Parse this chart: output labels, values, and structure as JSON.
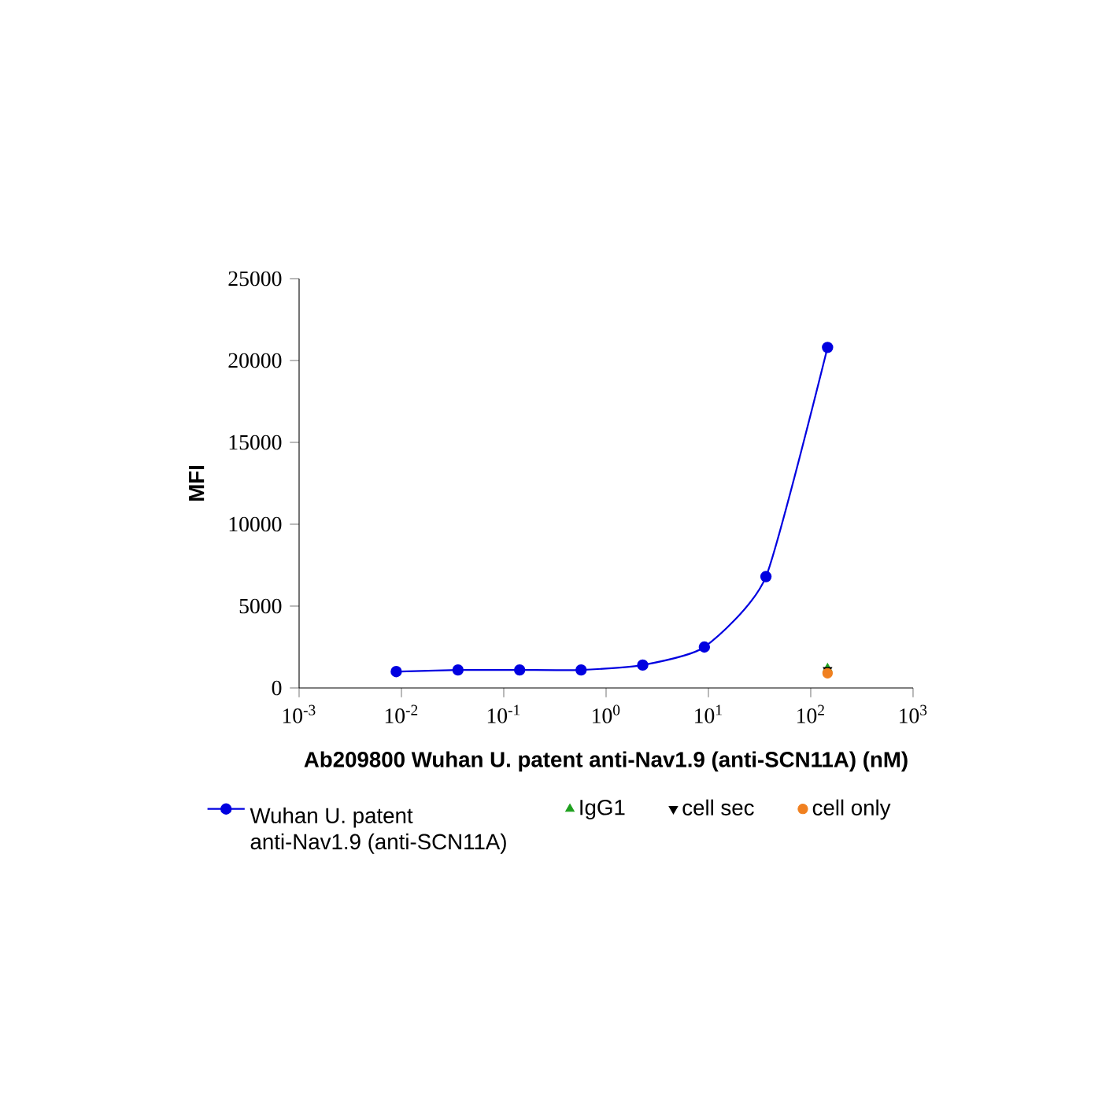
{
  "chart_data": {
    "type": "line",
    "xlabel": "Ab209800 Wuhan U. patent anti-Nav1.9 (anti-SCN11A) (nM)",
    "ylabel": "MFI",
    "log": "x",
    "grid": false,
    "legend": "bottom",
    "xlim": [
      0.001,
      1000
    ],
    "xticks": [
      {
        "value": 0.001,
        "label": "10$^{-3}$"
      },
      {
        "value": 0.01,
        "label": "10$^{-2}$"
      },
      {
        "value": 0.1,
        "label": "10$^{-1}$"
      },
      {
        "value": 1,
        "label": "10$^{0}$"
      },
      {
        "value": 10,
        "label": "10$^{1}$"
      },
      {
        "value": 100,
        "label": "10$^{2}$"
      },
      {
        "value": 1000,
        "label": "10$^{3}$"
      }
    ],
    "ylim": [
      0,
      25000
    ],
    "yticks": [
      0,
      5000,
      10000,
      15000,
      20000,
      25000
    ],
    "series": [
      {
        "name": "Wuhan U. patent anti-Nav1.9 (anti-SCN11A)",
        "color": "#0000e0",
        "marker": "circle",
        "line_style": "solid",
        "x": [
          0.0089,
          0.0357,
          0.143,
          0.57,
          2.28,
          9.13,
          36.5,
          146
        ],
        "values": [
          1000,
          1100,
          1100,
          1100,
          1400,
          2500,
          6800,
          20800
        ]
      },
      {
        "name": "IgG1",
        "type": "scatter",
        "color": "#1ea01e",
        "marker": "triangle",
        "x": [
          146
        ],
        "values": [
          1200
        ]
      },
      {
        "name": "cell sec",
        "type": "scatter",
        "color": "#000000",
        "marker": "triangle-down",
        "x": [
          146
        ],
        "values": [
          1100
        ]
      },
      {
        "name": "cell only",
        "type": "scatter",
        "color": "#f08020",
        "marker": "circle",
        "x": [
          146
        ],
        "values": [
          900
        ]
      }
    ]
  }
}
